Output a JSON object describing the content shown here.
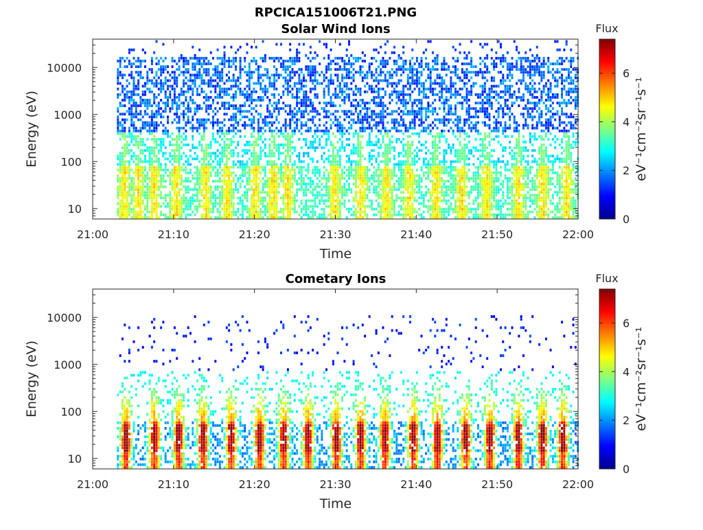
{
  "figure": {
    "title": "RPCICA151006T21.PNG"
  },
  "chart_data": [
    {
      "type": "heatmap",
      "title": "Solar Wind Ions",
      "xlabel": "Time",
      "ylabel": "Energy (eV)",
      "x_tick_labels": [
        "21:00",
        "21:10",
        "21:20",
        "21:30",
        "21:40",
        "21:50",
        "22:00"
      ],
      "x_range_minutes": [
        0,
        60
      ],
      "y_scale": "log",
      "y_range": [
        6,
        40000
      ],
      "y_ticks": [
        10,
        100,
        1000,
        10000
      ],
      "y_tick_labels": [
        "10",
        "100",
        "1000",
        "10000"
      ],
      "colorbar": {
        "title": "Flux",
        "label": "eV⁻¹cm⁻²sr⁻¹s⁻¹",
        "range": [
          0,
          7.4
        ],
        "ticks": [
          0,
          2,
          4,
          6
        ],
        "tick_labels": [
          "0",
          "2",
          "4",
          "6"
        ],
        "colormap": "jet"
      },
      "data_start_minute": 3,
      "data_end_minute": 60,
      "burst_peak_flux": 4.5,
      "background_flux": 2.0,
      "burst_minutes": [
        3.8,
        5.5,
        7.5,
        10.2,
        13.8,
        16.5,
        20.0,
        22.2,
        24.0,
        29.8,
        33.0,
        36.2,
        39.0,
        42.3,
        45.5,
        48.6,
        52.5,
        55.5,
        58.5
      ]
    },
    {
      "type": "heatmap",
      "title": "Cometary Ions",
      "xlabel": "Time",
      "ylabel": "Energy (eV)",
      "x_tick_labels": [
        "21:00",
        "21:10",
        "21:20",
        "21:30",
        "21:40",
        "21:50",
        "22:00"
      ],
      "x_range_minutes": [
        0,
        60
      ],
      "y_scale": "log",
      "y_range": [
        6,
        40000
      ],
      "y_ticks": [
        10,
        100,
        1000,
        10000
      ],
      "y_tick_labels": [
        "10",
        "100",
        "1000",
        "10000"
      ],
      "colorbar": {
        "title": "Flux",
        "label": "eV⁻¹cm⁻²sr⁻¹s⁻¹",
        "range": [
          0,
          7.4
        ],
        "ticks": [
          0,
          2,
          4,
          6
        ],
        "tick_labels": [
          "0",
          "2",
          "4",
          "6"
        ],
        "colormap": "jet"
      },
      "data_start_minute": 3,
      "data_end_minute": 60,
      "burst_peak_flux": 7.0,
      "background_flux": 0.8,
      "burst_minutes": [
        4.0,
        7.5,
        10.5,
        13.5,
        17.0,
        20.5,
        23.5,
        26.5,
        30.0,
        33.0,
        36.0,
        39.5,
        42.5,
        46.0,
        49.0,
        52.5,
        55.5,
        58.0
      ]
    }
  ]
}
